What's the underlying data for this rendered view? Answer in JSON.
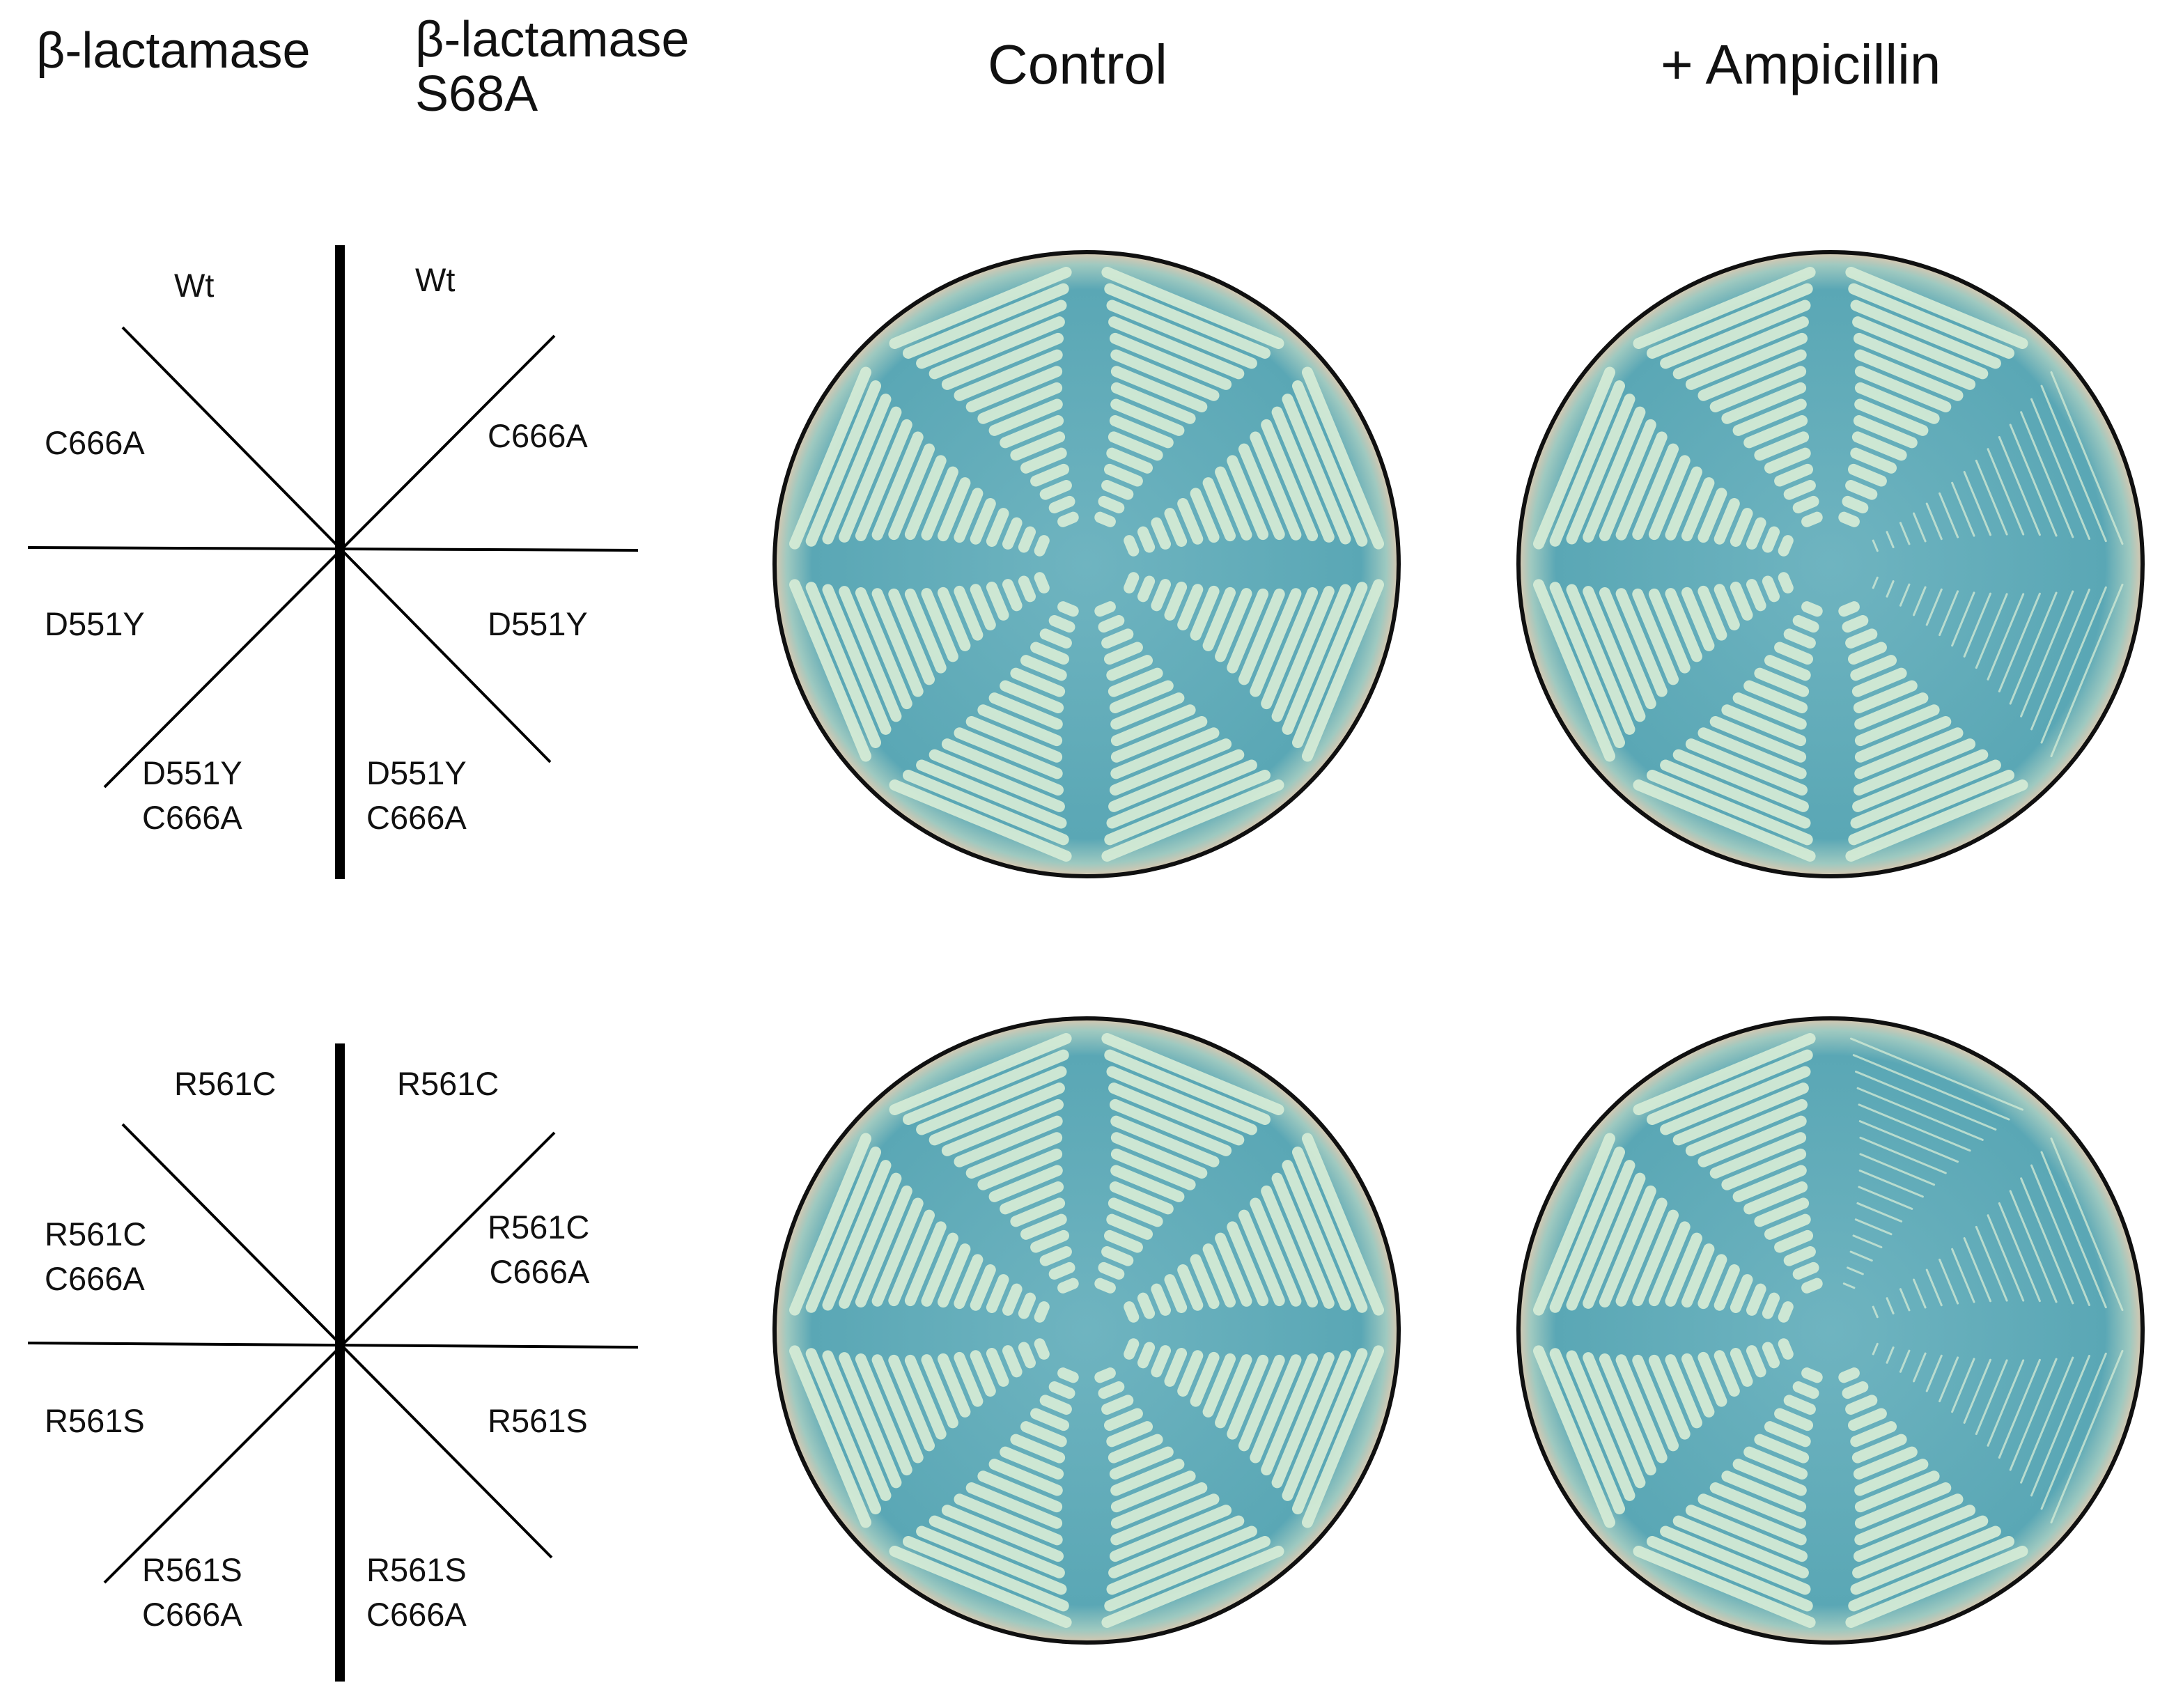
{
  "headers": {
    "col1": "β-lactamase",
    "col2_line1": "β-lactamase",
    "col2_line2": "S68A",
    "control": "Control",
    "ampicillin": "+ Ampicillin"
  },
  "top_key": {
    "left": [
      "Wt",
      "C666A",
      "D551Y",
      "D551Y\nC666A"
    ],
    "right": [
      "Wt",
      "C666A",
      "D551Y",
      "D551Y\nC666A"
    ]
  },
  "bottom_key": {
    "left": [
      "R561C",
      "R561C\nC666A",
      "R561S",
      "R561S\nC666A"
    ],
    "right": [
      "R561C",
      "R561C\nC666A",
      "R561S",
      "R561S\nC666A"
    ]
  },
  "colors": {
    "agar": "#5aa7b5",
    "colony": "#d6ecd6",
    "rim": "#101010"
  }
}
